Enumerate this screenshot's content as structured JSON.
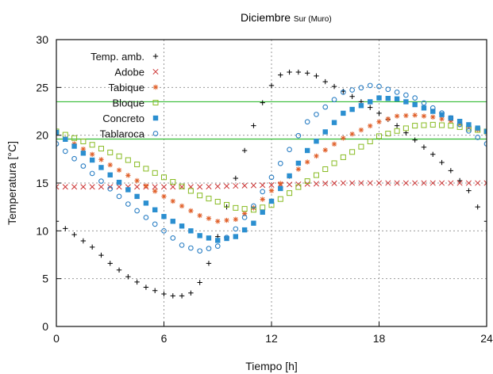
{
  "chart_data": {
    "type": "scatter",
    "title": "Diciembre",
    "subtitle": "Sur (Muro)",
    "xlabel": "Tiempo [h]",
    "ylabel": "Temperatura [°C]",
    "xlim": [
      0,
      24
    ],
    "ylim": [
      0,
      30
    ],
    "xticks": [
      0,
      6,
      12,
      18,
      24
    ],
    "yticks": [
      0,
      5,
      10,
      15,
      20,
      25,
      30
    ],
    "grid": true,
    "legend_position": "top-left",
    "comfort_band": {
      "lower": 19.6,
      "upper": 23.5,
      "color": "#33bb33"
    },
    "series": [
      {
        "name": "Temp. amb.",
        "marker": "plus",
        "color": "#000000",
        "points": [
          [
            0,
            11
          ],
          [
            0.3,
            10.5
          ],
          [
            1,
            9.6
          ],
          [
            2,
            8.3
          ],
          [
            3,
            6.6
          ],
          [
            4,
            5.2
          ],
          [
            5,
            4.1
          ],
          [
            6,
            3.4
          ],
          [
            6.5,
            3.2
          ],
          [
            7,
            3.2
          ],
          [
            7.5,
            3.5
          ],
          [
            8,
            4.6
          ],
          [
            8.5,
            6.6
          ],
          [
            9,
            9.4
          ],
          [
            9.5,
            12.5
          ],
          [
            10,
            15.5
          ],
          [
            10.5,
            18.4
          ],
          [
            11,
            21
          ],
          [
            11.5,
            23.4
          ],
          [
            12,
            25.2
          ],
          [
            12.5,
            26.3
          ],
          [
            13,
            26.6
          ],
          [
            13.5,
            26.6
          ],
          [
            14,
            26.5
          ],
          [
            14.5,
            26.2
          ],
          [
            15,
            25.6
          ],
          [
            16,
            24.6
          ],
          [
            17,
            23.5
          ],
          [
            18,
            22.3
          ],
          [
            19,
            21
          ],
          [
            20,
            19.5
          ],
          [
            21,
            18
          ],
          [
            22,
            16.3
          ],
          [
            23,
            14.2
          ],
          [
            23.5,
            12.5
          ],
          [
            24,
            11
          ]
        ]
      },
      {
        "name": "Adobe",
        "marker": "x",
        "color": "#cc3333",
        "points": [
          [
            0,
            14.6
          ],
          [
            4,
            14.6
          ],
          [
            8,
            14.6
          ],
          [
            12,
            14.8
          ],
          [
            16,
            15
          ],
          [
            20,
            15
          ],
          [
            24,
            15
          ]
        ]
      },
      {
        "name": "Tabique",
        "marker": "asterisk",
        "color": "#e0602a",
        "points": [
          [
            0,
            20.2
          ],
          [
            2,
            18
          ],
          [
            4,
            15.8
          ],
          [
            6,
            13.6
          ],
          [
            8,
            11.6
          ],
          [
            9,
            11
          ],
          [
            10,
            11.2
          ],
          [
            11,
            12.4
          ],
          [
            12,
            14.2
          ],
          [
            14,
            17.2
          ],
          [
            16,
            19.7
          ],
          [
            18,
            21.4
          ],
          [
            19,
            22
          ],
          [
            20,
            22.1
          ],
          [
            21,
            21.9
          ],
          [
            22,
            21.5
          ],
          [
            24,
            20.3
          ]
        ]
      },
      {
        "name": "Bloque",
        "marker": "square-open",
        "color": "#88bb22",
        "points": [
          [
            0,
            20.4
          ],
          [
            2,
            19
          ],
          [
            4,
            17.4
          ],
          [
            6,
            15.6
          ],
          [
            8,
            13.7
          ],
          [
            10,
            12.4
          ],
          [
            11,
            12.2
          ],
          [
            12,
            12.7
          ],
          [
            14,
            15.2
          ],
          [
            16,
            17.7
          ],
          [
            18,
            19.9
          ],
          [
            20,
            21
          ],
          [
            21,
            21.1
          ],
          [
            22,
            21
          ],
          [
            24,
            20.4
          ]
        ]
      },
      {
        "name": "Concreto",
        "marker": "square-filled",
        "color": "#2b8fd0",
        "points": [
          [
            0,
            20.3
          ],
          [
            2,
            17.4
          ],
          [
            4,
            14.3
          ],
          [
            6,
            11.5
          ],
          [
            8,
            9.5
          ],
          [
            9,
            9
          ],
          [
            10,
            9.4
          ],
          [
            11,
            10.8
          ],
          [
            12,
            13.1
          ],
          [
            14,
            18.4
          ],
          [
            16,
            22.3
          ],
          [
            18,
            23.9
          ],
          [
            19,
            23.8
          ],
          [
            20,
            23.2
          ],
          [
            22,
            21.8
          ],
          [
            24,
            20.4
          ]
        ]
      },
      {
        "name": "Tablaroca",
        "marker": "circle-open",
        "color": "#2b7fc4",
        "points": [
          [
            0,
            19.1
          ],
          [
            2,
            16
          ],
          [
            4,
            12.8
          ],
          [
            6,
            10
          ],
          [
            7,
            8.5
          ],
          [
            8,
            7.9
          ],
          [
            9,
            8.4
          ],
          [
            10,
            10.2
          ],
          [
            11,
            12.6
          ],
          [
            12,
            15.6
          ],
          [
            14,
            21.4
          ],
          [
            16,
            24.5
          ],
          [
            17.5,
            25.2
          ],
          [
            18,
            25.1
          ],
          [
            20,
            23.9
          ],
          [
            22,
            21.8
          ],
          [
            24,
            19.1
          ]
        ]
      }
    ]
  }
}
